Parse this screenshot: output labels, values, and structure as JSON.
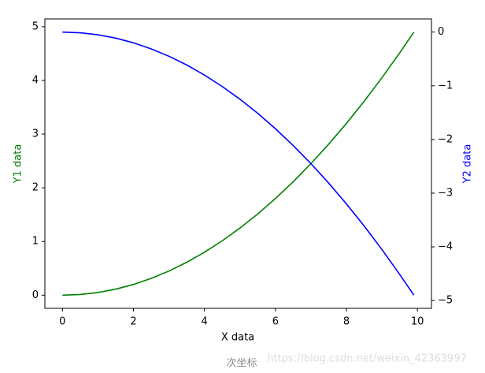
{
  "chart_data": {
    "type": "line",
    "xlabel": "X data",
    "ylabel": "Y1 data",
    "y2label": "Y2 data",
    "caption": "次坐标",
    "watermark": "https://blog.csdn.net/weixin_42363997",
    "x": [
      0,
      0.5,
      1,
      1.5,
      2,
      2.5,
      3,
      3.5,
      4,
      4.5,
      5,
      5.5,
      6,
      6.5,
      7,
      7.5,
      8,
      8.5,
      9,
      9.5,
      9.9
    ],
    "series": [
      {
        "name": "Y1 data",
        "color": "#008000",
        "axis": "y",
        "values": [
          0,
          0.0125,
          0.05,
          0.1125,
          0.2,
          0.3125,
          0.45,
          0.6125,
          0.8,
          1.0125,
          1.25,
          1.5125,
          1.8,
          2.1125,
          2.45,
          2.8125,
          3.2,
          3.6125,
          4.05,
          4.5125,
          4.9005
        ]
      },
      {
        "name": "Y2 data",
        "color": "#0000ff",
        "axis": "y2",
        "values": [
          0,
          -0.0125,
          -0.05,
          -0.1125,
          -0.2,
          -0.3125,
          -0.45,
          -0.6125,
          -0.8,
          -1.0125,
          -1.25,
          -1.5125,
          -1.8,
          -2.1125,
          -2.45,
          -2.8125,
          -3.2,
          -3.6125,
          -4.05,
          -4.5125,
          -4.9005
        ]
      }
    ],
    "xlim": [
      -0.495,
      10.395
    ],
    "xticks": [
      0,
      2,
      4,
      6,
      8,
      10
    ],
    "ylim": [
      -0.245,
      5.145
    ],
    "yticks": [
      0,
      1,
      2,
      3,
      4,
      5
    ],
    "y2lim": [
      -5.145,
      0.245
    ],
    "y2ticks": [
      {
        "value": -5,
        "label": "−5"
      },
      {
        "value": -4,
        "label": "−4"
      },
      {
        "value": -3,
        "label": "−3"
      },
      {
        "value": -2,
        "label": "−2"
      },
      {
        "value": -1,
        "label": "−1"
      },
      0
    ]
  }
}
